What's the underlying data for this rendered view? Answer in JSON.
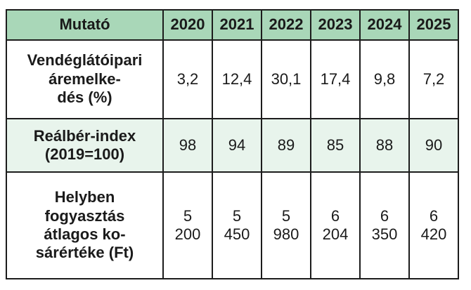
{
  "table": {
    "header": {
      "label": "Mutató",
      "years": [
        "2020",
        "2021",
        "2022",
        "2023",
        "2024",
        "2025"
      ]
    },
    "rows": [
      {
        "label_lines": [
          "Vendéglátóipari",
          "áremelke-",
          "dés (%)"
        ],
        "values": [
          [
            "3,2"
          ],
          [
            "12,4"
          ],
          [
            "30,1"
          ],
          [
            "17,4"
          ],
          [
            "9,8"
          ],
          [
            "7,2"
          ]
        ]
      },
      {
        "label_lines": [
          "Reálbér-index",
          "(2019=100)"
        ],
        "values": [
          [
            "98"
          ],
          [
            "94"
          ],
          [
            "89"
          ],
          [
            "85"
          ],
          [
            "88"
          ],
          [
            "90"
          ]
        ]
      },
      {
        "label_lines": [
          "Helyben",
          "fogyasztás",
          "átlagos ko-",
          "sárértéke (Ft)"
        ],
        "values": [
          [
            "5",
            "200"
          ],
          [
            "5",
            "450"
          ],
          [
            "5",
            "980"
          ],
          [
            "6",
            "204"
          ],
          [
            "6",
            "350"
          ],
          [
            "6",
            "420"
          ]
        ]
      }
    ]
  },
  "colors": {
    "header_bg": "#a9d7b8",
    "stripe_bg": "#e8f4ec",
    "border": "#1c1c1c"
  }
}
